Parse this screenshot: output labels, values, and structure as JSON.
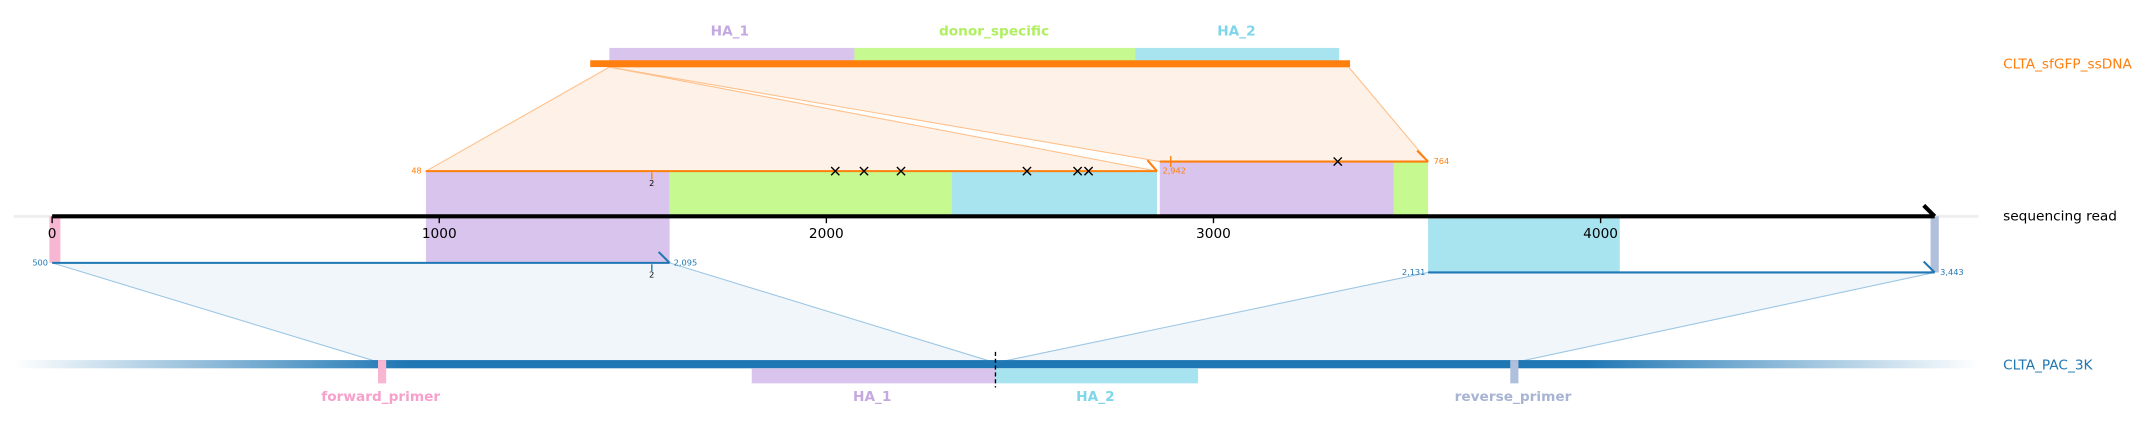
{
  "ssdna": {
    "name": "CLTA_sfGFP_ssDNA",
    "features": [
      "HA_1",
      "donor_specific",
      "HA_2"
    ]
  },
  "read": {
    "name": "sequencing read",
    "xlim": [
      0,
      4863
    ],
    "xticks": [
      0,
      1000,
      2000,
      3000,
      4000
    ]
  },
  "top_alignments": [
    {
      "start": "48",
      "mark": "2",
      "end": "2,942"
    },
    {
      "end": "764"
    }
  ],
  "bottom_alignments": [
    {
      "start": "500",
      "end": "2,095",
      "mark": "2"
    },
    {
      "start": "2,131",
      "end": "3,443"
    }
  ],
  "reference": {
    "name": "CLTA_PAC_3K",
    "features": [
      "forward_primer",
      "HA_1",
      "HA_2",
      "reverse_primer"
    ]
  }
}
